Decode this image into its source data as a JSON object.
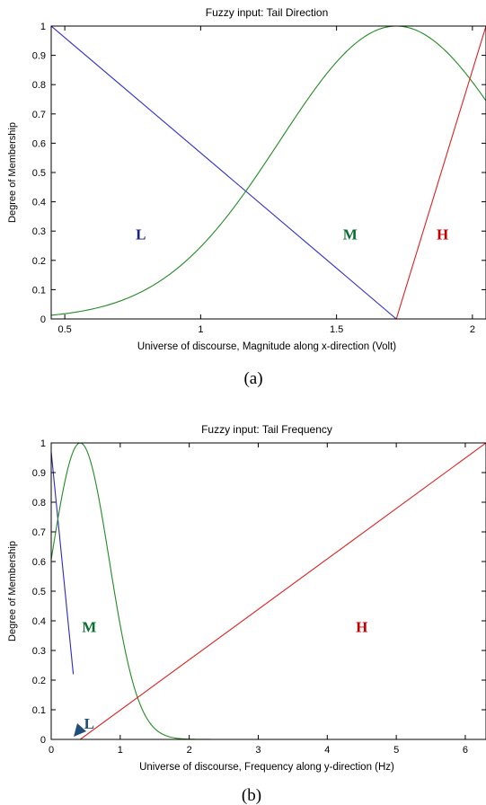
{
  "chart_data": [
    {
      "type": "line",
      "title": "Fuzzy input: Tail Direction",
      "xlabel": "Universe of discourse, Magnitude along x-direction (Volt)",
      "ylabel": "Degree of Membership",
      "caption": "(a)",
      "xlim": [
        0.45,
        2.05
      ],
      "ylim": [
        0,
        1
      ],
      "xticks": [
        0.5,
        1,
        1.5,
        2
      ],
      "xtick_labels": [
        "0.5",
        "1",
        "1.5",
        "2"
      ],
      "yticks": [
        0,
        0.1,
        0.2,
        0.3,
        0.4,
        0.5,
        0.6,
        0.7,
        0.8,
        0.9,
        1
      ],
      "ytick_labels": [
        "0",
        "0.1",
        "0.2",
        "0.3",
        "0.4",
        "0.5",
        "0.6",
        "0.7",
        "0.8",
        "0.9",
        "1"
      ],
      "grid": false,
      "series": [
        {
          "label": "L",
          "color": "#1a237e",
          "line_color": "#3030c8",
          "shape": "linear",
          "points": [
            [
              0.45,
              1.0
            ],
            [
              1.72,
              0.0
            ]
          ],
          "label_pos": [
            0.78,
            0.29
          ]
        },
        {
          "label": "M",
          "color": "#0b6e2e",
          "line_color": "#228b22",
          "shape": "gaussian",
          "center": 1.72,
          "sigma": 0.43,
          "x_range": [
            0.45,
            2.05
          ],
          "label_pos": [
            1.55,
            0.29
          ]
        },
        {
          "label": "H",
          "color": "#c00000",
          "line_color": "#dd2020",
          "shape": "linear",
          "points": [
            [
              1.72,
              0.0
            ],
            [
              2.05,
              1.0
            ]
          ],
          "label_pos": [
            1.89,
            0.29
          ]
        }
      ]
    },
    {
      "type": "line",
      "title": "Fuzzy input: Tail Frequency",
      "xlabel": "Universe of discourse, Frequency along y-direction (Hz)",
      "ylabel": "Degree of Membership",
      "caption": "(b)",
      "xlim": [
        0,
        6.3
      ],
      "ylim": [
        0,
        1
      ],
      "xticks": [
        0,
        1,
        2,
        3,
        4,
        5,
        6
      ],
      "xtick_labels": [
        "0",
        "1",
        "2",
        "3",
        "4",
        "5",
        "6"
      ],
      "yticks": [
        0,
        0.1,
        0.2,
        0.3,
        0.4,
        0.5,
        0.6,
        0.7,
        0.8,
        0.9,
        1
      ],
      "ytick_labels": [
        "0",
        "0.1",
        "0.2",
        "0.3",
        "0.4",
        "0.5",
        "0.6",
        "0.7",
        "0.8",
        "0.9",
        "1"
      ],
      "grid": false,
      "series": [
        {
          "label": "L",
          "color": "#1f4e79",
          "line_color": "#2b2bbf",
          "shape": "linear",
          "points": [
            [
              0.0,
              0.97
            ],
            [
              0.32,
              0.22
            ]
          ],
          "label_pos": [
            0.55,
            0.055
          ],
          "arrow": true
        },
        {
          "label": "M",
          "color": "#0b6e2e",
          "line_color": "#228b22",
          "shape": "gaussian",
          "center": 0.42,
          "sigma": 0.42,
          "x_range": [
            0.0,
            4.05
          ],
          "label_pos": [
            0.55,
            0.38
          ]
        },
        {
          "label": "H",
          "color": "#c00000",
          "line_color": "#dd2020",
          "shape": "linear",
          "points": [
            [
              0.42,
              0.0
            ],
            [
              6.3,
              1.0
            ]
          ],
          "label_pos": [
            4.5,
            0.38
          ]
        }
      ]
    }
  ]
}
